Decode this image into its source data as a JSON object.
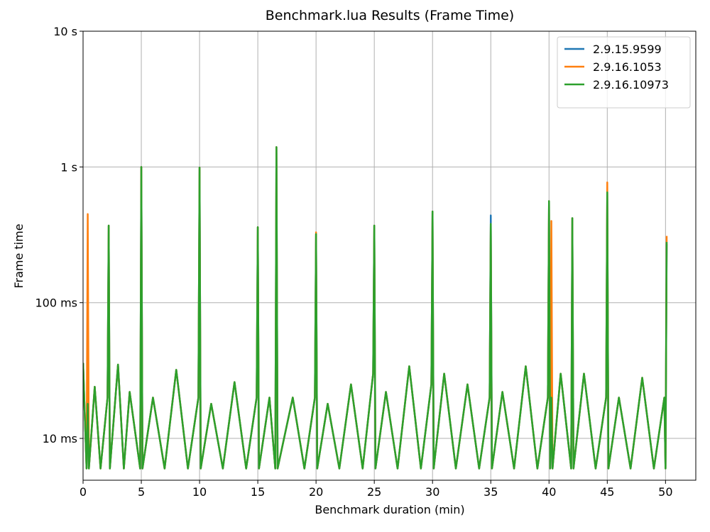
{
  "chart_data": {
    "type": "line",
    "title": "Benchmark.lua Results (Frame Time)",
    "x_label": "Benchmark duration (min)",
    "y_label": "Frame time",
    "log_y": true,
    "grid": true,
    "legend": "upper right",
    "xlim": [
      0,
      52.6
    ],
    "ylim": [
      0.00492,
      10
    ],
    "xticks": [
      0,
      5,
      10,
      15,
      20,
      25,
      30,
      35,
      40,
      45,
      50
    ],
    "yticks": [
      {
        "value": 0.01,
        "label": "10 ms"
      },
      {
        "value": 0.1,
        "label": "100 ms"
      },
      {
        "value": 1,
        "label": "1 s"
      },
      {
        "value": 10,
        "label": "10 s"
      }
    ],
    "x": [
      0,
      0.3,
      0.4,
      0.5,
      1,
      1.5,
      2.1,
      2.2,
      2.3,
      3,
      3.5,
      4,
      4.9,
      5.0,
      5.1,
      6,
      7,
      8,
      9,
      9.9,
      10.0,
      10.1,
      11,
      12,
      13,
      14,
      14.9,
      15.0,
      15.1,
      16,
      16.5,
      16.6,
      16.7,
      18,
      19,
      19.9,
      20.0,
      20.1,
      21,
      22,
      23,
      24,
      24.9,
      25.0,
      25.1,
      26,
      27,
      28,
      29,
      29.9,
      30.0,
      30.1,
      31,
      32,
      33,
      34,
      34.9,
      35.0,
      35.1,
      36,
      37,
      38,
      39,
      39.9,
      40.0,
      40.1,
      40.2,
      40.3,
      41,
      41.9,
      42.0,
      42.1,
      43,
      44,
      44.9,
      45.0,
      45.1,
      46,
      47,
      48,
      49,
      49.9,
      50.0,
      50.1
    ],
    "series": [
      {
        "name": "2.9.15.9599",
        "color": "#1f77b4",
        "values": [
          0.036,
          0.006,
          0.02,
          0.006,
          0.024,
          0.006,
          0.02,
          0.37,
          0.006,
          0.035,
          0.006,
          0.022,
          0.006,
          1.0,
          0.006,
          0.02,
          0.006,
          0.032,
          0.006,
          0.02,
          0.99,
          0.006,
          0.018,
          0.006,
          0.026,
          0.006,
          0.02,
          0.36,
          0.006,
          0.02,
          0.006,
          1.4,
          0.006,
          0.02,
          0.006,
          0.02,
          0.32,
          0.006,
          0.018,
          0.006,
          0.025,
          0.006,
          0.03,
          0.37,
          0.006,
          0.022,
          0.006,
          0.034,
          0.006,
          0.025,
          0.47,
          0.006,
          0.03,
          0.006,
          0.025,
          0.006,
          0.02,
          0.44,
          0.006,
          0.022,
          0.006,
          0.034,
          0.006,
          0.02,
          0.56,
          0.006,
          0.02,
          0.006,
          0.03,
          0.006,
          0.42,
          0.006,
          0.03,
          0.006,
          0.02,
          0.65,
          0.006,
          0.02,
          0.006,
          0.028,
          0.006,
          0.02,
          0.006,
          0.27
        ]
      },
      {
        "name": "2.9.16.1053",
        "color": "#ff7f0e",
        "values": [
          0.036,
          0.006,
          0.45,
          0.006,
          0.024,
          0.006,
          0.02,
          0.37,
          0.006,
          0.035,
          0.006,
          0.022,
          0.006,
          1.0,
          0.006,
          0.02,
          0.006,
          0.032,
          0.006,
          0.02,
          0.99,
          0.006,
          0.018,
          0.006,
          0.026,
          0.006,
          0.02,
          0.36,
          0.006,
          0.02,
          0.006,
          1.4,
          0.006,
          0.02,
          0.006,
          0.02,
          0.33,
          0.006,
          0.018,
          0.006,
          0.025,
          0.006,
          0.03,
          0.37,
          0.006,
          0.022,
          0.006,
          0.034,
          0.006,
          0.025,
          0.47,
          0.006,
          0.03,
          0.006,
          0.025,
          0.006,
          0.02,
          0.38,
          0.006,
          0.022,
          0.006,
          0.034,
          0.006,
          0.02,
          0.56,
          0.006,
          0.4,
          0.006,
          0.03,
          0.006,
          0.42,
          0.006,
          0.03,
          0.006,
          0.02,
          0.77,
          0.006,
          0.02,
          0.006,
          0.028,
          0.006,
          0.02,
          0.006,
          0.31
        ]
      },
      {
        "name": "2.9.16.10973",
        "color": "#2ca02c",
        "values": [
          0.036,
          0.006,
          0.018,
          0.006,
          0.024,
          0.006,
          0.02,
          0.37,
          0.006,
          0.035,
          0.006,
          0.022,
          0.006,
          1.0,
          0.006,
          0.02,
          0.006,
          0.032,
          0.006,
          0.02,
          0.99,
          0.006,
          0.018,
          0.006,
          0.026,
          0.006,
          0.02,
          0.36,
          0.006,
          0.02,
          0.006,
          1.4,
          0.006,
          0.02,
          0.006,
          0.02,
          0.32,
          0.006,
          0.018,
          0.006,
          0.025,
          0.006,
          0.03,
          0.37,
          0.006,
          0.022,
          0.006,
          0.034,
          0.006,
          0.025,
          0.47,
          0.006,
          0.03,
          0.006,
          0.025,
          0.006,
          0.02,
          0.38,
          0.006,
          0.022,
          0.006,
          0.034,
          0.006,
          0.02,
          0.56,
          0.006,
          0.02,
          0.006,
          0.03,
          0.006,
          0.42,
          0.006,
          0.03,
          0.006,
          0.02,
          0.65,
          0.006,
          0.02,
          0.006,
          0.028,
          0.006,
          0.02,
          0.006,
          0.28
        ]
      }
    ]
  }
}
